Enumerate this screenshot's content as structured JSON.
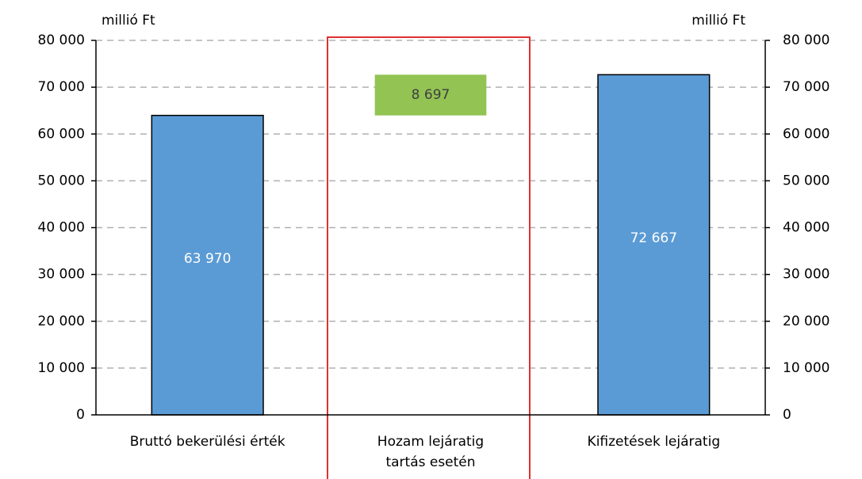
{
  "chart_data": {
    "type": "waterfall",
    "y_label": "millió Ft",
    "y2_label": "millió Ft",
    "categories": [
      "Bruttó bekerülési érték",
      "Hozam lejáratig tartás esetén",
      "Kifizetések lejáratig"
    ],
    "values": [
      63970,
      8697,
      72667
    ],
    "value_labels": [
      "63 970",
      "8 697",
      "72 667"
    ],
    "measures": [
      "absolute",
      "relative",
      "total"
    ],
    "colors": [
      "#5b9bd5",
      "#92c353",
      "#5b9bd5"
    ],
    "ylim": [
      0,
      80000
    ],
    "yticks": [
      0,
      {
        "value": 10000,
        "label": "10 000"
      },
      {
        "value": 20000,
        "label": "20 000"
      },
      {
        "value": 30000,
        "label": "30 000"
      },
      {
        "value": 40000,
        "label": "40 000"
      },
      {
        "value": 50000,
        "label": "50 000"
      },
      {
        "value": 60000,
        "label": "60 000"
      },
      {
        "value": 70000,
        "label": "70 000"
      },
      {
        "value": 80000,
        "label": "80 000"
      }
    ],
    "y2lim": [
      0,
      80000
    ],
    "y2ticks": [
      0,
      {
        "value": 10000,
        "label": "10 000"
      },
      {
        "value": 20000,
        "label": "20 000"
      },
      {
        "value": 30000,
        "label": "30 000"
      },
      {
        "value": 40000,
        "label": "40 000"
      },
      {
        "value": 50000,
        "label": "50 000"
      },
      {
        "value": 60000,
        "label": "60 000"
      },
      {
        "value": 70000,
        "label": "70 000"
      },
      {
        "value": 80000,
        "label": "80 000"
      }
    ],
    "grid": true
  }
}
